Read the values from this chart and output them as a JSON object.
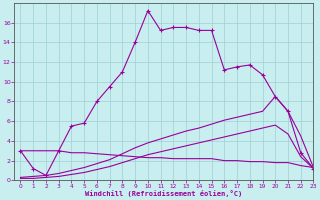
{
  "xlabel": "Windchill (Refroidissement éolien,°C)",
  "background_color": "#c8eef0",
  "line_color": "#990099",
  "line1_x": [
    0,
    1,
    2,
    3,
    4,
    5,
    6,
    7,
    8,
    9,
    10,
    11,
    12,
    13,
    14,
    15,
    16,
    17,
    18,
    19,
    20,
    21,
    22,
    23
  ],
  "line1_y": [
    3.0,
    1.2,
    0.5,
    3.0,
    5.5,
    5.8,
    8.0,
    9.5,
    11.0,
    14.0,
    17.2,
    15.2,
    15.5,
    15.5,
    15.2,
    15.2,
    11.2,
    11.5,
    11.7,
    10.7,
    8.5,
    7.0,
    2.8,
    1.2
  ],
  "line2_x": [
    0,
    1,
    2,
    3,
    4,
    5,
    6,
    7,
    8,
    9,
    10,
    11,
    12,
    13,
    14,
    15,
    16,
    17,
    18,
    19,
    20,
    21,
    22,
    23
  ],
  "line2_y": [
    3.0,
    3.0,
    3.0,
    3.0,
    2.8,
    2.8,
    2.7,
    2.6,
    2.5,
    2.4,
    2.3,
    2.3,
    2.2,
    2.2,
    2.2,
    2.2,
    2.0,
    2.0,
    1.9,
    1.9,
    1.8,
    1.8,
    1.5,
    1.3
  ],
  "line3_x": [
    0,
    1,
    2,
    3,
    4,
    5,
    6,
    7,
    8,
    9,
    10,
    11,
    12,
    13,
    14,
    15,
    16,
    17,
    18,
    19,
    20,
    21,
    22,
    23
  ],
  "line3_y": [
    0.3,
    0.4,
    0.5,
    0.7,
    1.0,
    1.3,
    1.7,
    2.1,
    2.7,
    3.3,
    3.8,
    4.2,
    4.6,
    5.0,
    5.3,
    5.7,
    6.1,
    6.4,
    6.7,
    7.0,
    8.5,
    7.0,
    4.5,
    1.3
  ],
  "line4_x": [
    0,
    1,
    2,
    3,
    4,
    5,
    6,
    7,
    8,
    9,
    10,
    11,
    12,
    13,
    14,
    15,
    16,
    17,
    18,
    19,
    20,
    21,
    22,
    23
  ],
  "line4_y": [
    0.2,
    0.2,
    0.3,
    0.4,
    0.6,
    0.8,
    1.1,
    1.4,
    1.8,
    2.2,
    2.6,
    2.9,
    3.2,
    3.5,
    3.8,
    4.1,
    4.4,
    4.7,
    5.0,
    5.3,
    5.6,
    4.7,
    2.4,
    1.2
  ],
  "ylim": [
    0,
    18
  ],
  "xlim": [
    -0.5,
    23
  ],
  "yticks": [
    0,
    2,
    4,
    6,
    8,
    10,
    12,
    14,
    16
  ],
  "xticks": [
    0,
    1,
    2,
    3,
    4,
    5,
    6,
    7,
    8,
    9,
    10,
    11,
    12,
    13,
    14,
    15,
    16,
    17,
    18,
    19,
    20,
    21,
    22,
    23
  ],
  "grid_color": "#9ecfd4",
  "marker": "+"
}
